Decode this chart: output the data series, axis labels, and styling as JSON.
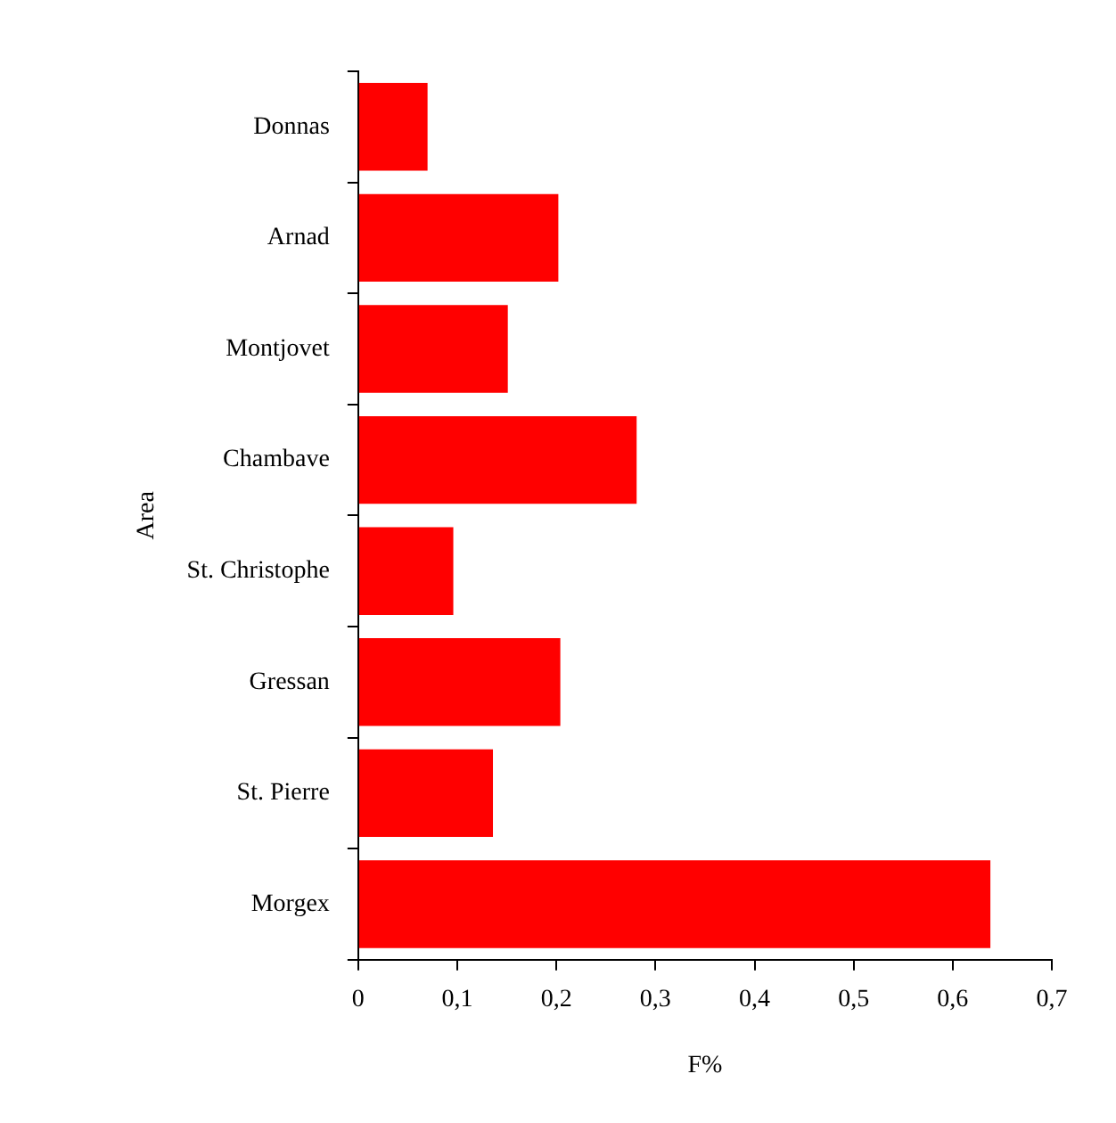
{
  "chart_data": {
    "type": "bar",
    "orientation": "horizontal",
    "xlabel": "F%",
    "ylabel": "Area",
    "categories": [
      "Donnas",
      "Arnad",
      "Montjovet",
      "Chambave",
      "St. Christophe",
      "Gressan",
      "St. Pierre",
      "Morgex"
    ],
    "values": [
      0.07,
      0.202,
      0.151,
      0.281,
      0.096,
      0.204,
      0.136,
      0.638
    ],
    "color": "#ff0000",
    "xlim": [
      0,
      0.7
    ],
    "xticks": [
      0,
      {
        "value": 0.1,
        "label": "0,1"
      },
      {
        "value": 0.2,
        "label": "0,2"
      },
      {
        "value": 0.3,
        "label": "0,3"
      },
      {
        "value": 0.4,
        "label": "0,4"
      },
      {
        "value": 0.5,
        "label": "0,5"
      },
      {
        "value": 0.6,
        "label": "0,6"
      },
      {
        "value": 0.7,
        "label": "0,7"
      }
    ],
    "grid": false,
    "legend": false
  }
}
